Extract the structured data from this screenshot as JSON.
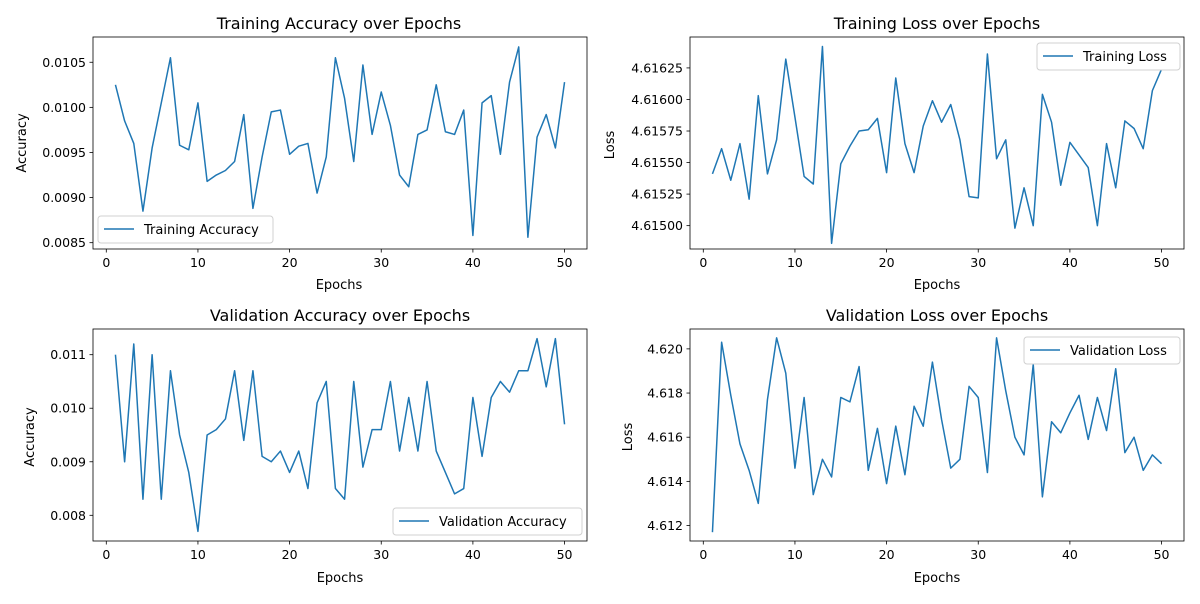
{
  "figure": {
    "background": "#ffffff",
    "line_color": "#1f77b4"
  },
  "chart_data": [
    {
      "id": "train_acc",
      "type": "line",
      "title": "Training Accuracy over Epochs",
      "xlabel": "Epochs",
      "ylabel": "Accuracy",
      "xlim": [
        -1.45,
        52.45
      ],
      "ylim": [
        0.00843,
        0.01078
      ],
      "xticks": [
        0,
        10,
        20,
        30,
        40,
        50
      ],
      "xtick_labels": [
        "0",
        "10",
        "20",
        "30",
        "40",
        "50"
      ],
      "yticks": [
        0.0085,
        0.009,
        0.0095,
        0.01,
        0.0105
      ],
      "ytick_labels": [
        "0.0085",
        "0.0090",
        "0.0095",
        "0.0100",
        "0.0105"
      ],
      "legend": "lower left",
      "grid": false,
      "series": [
        {
          "name": "Training Accuracy",
          "color": "#1f77b4",
          "x": [
            1,
            2,
            3,
            4,
            5,
            6,
            7,
            8,
            9,
            10,
            11,
            12,
            13,
            14,
            15,
            16,
            17,
            18,
            19,
            20,
            21,
            22,
            23,
            24,
            25,
            26,
            27,
            28,
            29,
            30,
            31,
            32,
            33,
            34,
            35,
            36,
            37,
            38,
            39,
            40,
            41,
            42,
            43,
            44,
            45,
            46,
            47,
            48,
            49,
            50
          ],
          "y": [
            0.01025,
            0.00985,
            0.0096,
            0.00885,
            0.00955,
            0.01005,
            0.01055,
            0.00958,
            0.00953,
            0.01005,
            0.00918,
            0.00925,
            0.0093,
            0.0094,
            0.00992,
            0.00888,
            0.00945,
            0.00995,
            0.00997,
            0.00948,
            0.00957,
            0.0096,
            0.00905,
            0.00945,
            0.01055,
            0.0101,
            0.0094,
            0.01047,
            0.0097,
            0.01017,
            0.0098,
            0.00925,
            0.00912,
            0.0097,
            0.00975,
            0.01025,
            0.00973,
            0.0097,
            0.00997,
            0.00858,
            0.01005,
            0.01013,
            0.00948,
            0.01028,
            0.01067,
            0.00856,
            0.00967,
            0.00992,
            0.00955,
            0.01028
          ]
        }
      ]
    },
    {
      "id": "train_loss",
      "type": "line",
      "title": "Training Loss over Epochs",
      "xlabel": "Epochs",
      "ylabel": "Loss",
      "xlim": [
        -1.45,
        52.45
      ],
      "ylim": [
        4.614815,
        4.616495
      ],
      "xticks": [
        0,
        10,
        20,
        30,
        40,
        50
      ],
      "xtick_labels": [
        "0",
        "10",
        "20",
        "30",
        "40",
        "50"
      ],
      "yticks": [
        4.615,
        4.61525,
        4.6155,
        4.61575,
        4.616,
        4.61625
      ],
      "ytick_labels": [
        "4.61500",
        "4.61525",
        "4.61550",
        "4.61575",
        "4.61600",
        "4.61625"
      ],
      "legend": "upper right",
      "grid": false,
      "series": [
        {
          "name": "Training Loss",
          "color": "#1f77b4",
          "x": [
            1,
            2,
            3,
            4,
            5,
            6,
            7,
            8,
            9,
            10,
            11,
            12,
            13,
            14,
            15,
            16,
            17,
            18,
            19,
            20,
            21,
            22,
            23,
            24,
            25,
            26,
            27,
            28,
            29,
            30,
            31,
            32,
            33,
            34,
            35,
            36,
            37,
            38,
            39,
            40,
            41,
            42,
            43,
            44,
            45,
            46,
            47,
            48,
            49,
            50
          ],
          "y": [
            4.61541,
            4.61561,
            4.61536,
            4.61565,
            4.61521,
            4.61603,
            4.61541,
            4.61568,
            4.61632,
            4.61586,
            4.61539,
            4.61533,
            4.61642,
            4.61486,
            4.61549,
            4.61563,
            4.61575,
            4.61576,
            4.61585,
            4.61542,
            4.61617,
            4.61565,
            4.61542,
            4.61579,
            4.61599,
            4.61582,
            4.61596,
            4.61568,
            4.61523,
            4.61522,
            4.61636,
            4.61553,
            4.61568,
            4.61498,
            4.6153,
            4.615,
            4.61604,
            4.61582,
            4.61532,
            4.61566,
            4.61556,
            4.61546,
            4.615,
            4.61565,
            4.6153,
            4.61583,
            4.61577,
            4.61561,
            4.61607,
            4.61624
          ]
        }
      ]
    },
    {
      "id": "val_acc",
      "type": "line",
      "title": "Validation Accuracy over Epochs",
      "xlabel": "Epochs",
      "ylabel": "Accuracy",
      "xlim": [
        -1.45,
        52.45
      ],
      "ylim": [
        0.00752,
        0.01148
      ],
      "xticks": [
        0,
        10,
        20,
        30,
        40,
        50
      ],
      "xtick_labels": [
        "0",
        "10",
        "20",
        "30",
        "40",
        "50"
      ],
      "yticks": [
        0.008,
        0.009,
        0.01,
        0.011
      ],
      "ytick_labels": [
        "0.008",
        "0.009",
        "0.010",
        "0.011"
      ],
      "legend": "lower right",
      "grid": false,
      "series": [
        {
          "name": "Validation Accuracy",
          "color": "#1f77b4",
          "x": [
            1,
            2,
            3,
            4,
            5,
            6,
            7,
            8,
            9,
            10,
            11,
            12,
            13,
            14,
            15,
            16,
            17,
            18,
            19,
            20,
            21,
            22,
            23,
            24,
            25,
            26,
            27,
            28,
            29,
            30,
            31,
            32,
            33,
            34,
            35,
            36,
            37,
            38,
            39,
            40,
            41,
            42,
            43,
            44,
            45,
            46,
            47,
            48,
            49,
            50
          ],
          "y": [
            0.011,
            0.009,
            0.0112,
            0.0083,
            0.011,
            0.0083,
            0.0107,
            0.0095,
            0.0088,
            0.0077,
            0.0095,
            0.0096,
            0.0098,
            0.0107,
            0.0094,
            0.0107,
            0.0091,
            0.009,
            0.0092,
            0.0088,
            0.0092,
            0.0085,
            0.0101,
            0.0105,
            0.0085,
            0.0083,
            0.0105,
            0.0089,
            0.0096,
            0.0096,
            0.0105,
            0.0092,
            0.0102,
            0.0092,
            0.0105,
            0.0092,
            0.0088,
            0.0084,
            0.0085,
            0.0102,
            0.0091,
            0.0102,
            0.0105,
            0.0103,
            0.0107,
            0.0107,
            0.0113,
            0.0104,
            0.0113,
            0.0097
          ]
        }
      ]
    },
    {
      "id": "val_loss",
      "type": "line",
      "title": "Validation Loss over Epochs",
      "xlabel": "Epochs",
      "ylabel": "Loss",
      "xlim": [
        -1.45,
        52.45
      ],
      "ylim": [
        4.6113,
        4.6209
      ],
      "xticks": [
        0,
        10,
        20,
        30,
        40,
        50
      ],
      "xtick_labels": [
        "0",
        "10",
        "20",
        "30",
        "40",
        "50"
      ],
      "yticks": [
        4.612,
        4.614,
        4.616,
        4.618,
        4.62
      ],
      "ytick_labels": [
        "4.612",
        "4.614",
        "4.616",
        "4.618",
        "4.620"
      ],
      "legend": "upper right",
      "grid": false,
      "series": [
        {
          "name": "Validation Loss",
          "color": "#1f77b4",
          "x": [
            1,
            2,
            3,
            4,
            5,
            6,
            7,
            8,
            9,
            10,
            11,
            12,
            13,
            14,
            15,
            16,
            17,
            18,
            19,
            20,
            21,
            22,
            23,
            24,
            25,
            26,
            27,
            28,
            29,
            30,
            31,
            32,
            33,
            34,
            35,
            36,
            37,
            38,
            39,
            40,
            41,
            42,
            43,
            44,
            45,
            46,
            47,
            48,
            49,
            50
          ],
          "y": [
            4.6117,
            4.6203,
            4.6179,
            4.6157,
            4.6145,
            4.613,
            4.6177,
            4.6205,
            4.6189,
            4.6146,
            4.6178,
            4.6134,
            4.615,
            4.6142,
            4.6178,
            4.6176,
            4.6192,
            4.6145,
            4.6164,
            4.6139,
            4.6165,
            4.6143,
            4.6174,
            4.6165,
            4.6194,
            4.6168,
            4.6146,
            4.615,
            4.6183,
            4.6178,
            4.6144,
            4.6205,
            4.6181,
            4.616,
            4.6152,
            4.6193,
            4.6133,
            4.6167,
            4.6162,
            4.6171,
            4.6179,
            4.6159,
            4.6178,
            4.6163,
            4.6191,
            4.6153,
            4.616,
            4.6145,
            4.6152,
            4.6148
          ]
        }
      ]
    }
  ]
}
